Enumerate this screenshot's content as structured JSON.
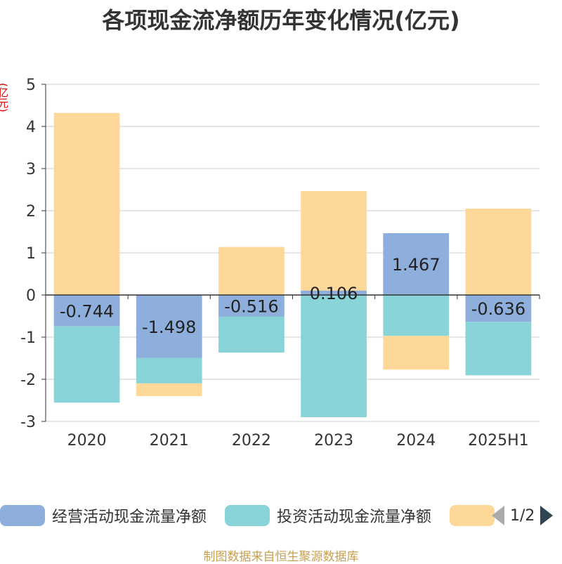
{
  "title": "各项现金流净额历年变化情况(亿元)",
  "y_unit": "(亿元)",
  "footer": "制图数据来自恒生聚源数据库",
  "legend": {
    "items": [
      {
        "label": "经营活动现金流量净额",
        "color": "#8eaedb"
      },
      {
        "label": "投资活动现金流量净额",
        "color": "#88d4d8"
      },
      {
        "label": "",
        "color": "#fdd899"
      }
    ],
    "page": "1/2"
  },
  "chart_data": {
    "type": "bar",
    "stacked": true,
    "categories": [
      "2020",
      "2021",
      "2022",
      "2023",
      "2024",
      "2025H1"
    ],
    "ylim": [
      -3,
      5
    ],
    "yticks": [
      -3,
      -2,
      -1,
      0,
      1,
      2,
      3,
      4,
      5
    ],
    "grid": true,
    "series": [
      {
        "name": "经营活动现金流量净额",
        "color": "#8eaedb",
        "values": [
          -0.744,
          -1.498,
          -0.516,
          0.106,
          1.467,
          -0.636
        ],
        "labels": [
          "-0.744",
          "-1.498",
          "-0.516",
          "0.106",
          "1.467",
          "-0.636"
        ]
      },
      {
        "name": "投资活动现金流量净额",
        "color": "#88d4d8",
        "values": [
          -1.81,
          -0.6,
          -0.85,
          -2.9,
          -0.97,
          -1.27
        ]
      },
      {
        "color": "#fdd899",
        "values": [
          4.32,
          -0.3,
          1.14,
          2.36,
          -0.8,
          2.05
        ]
      }
    ]
  }
}
